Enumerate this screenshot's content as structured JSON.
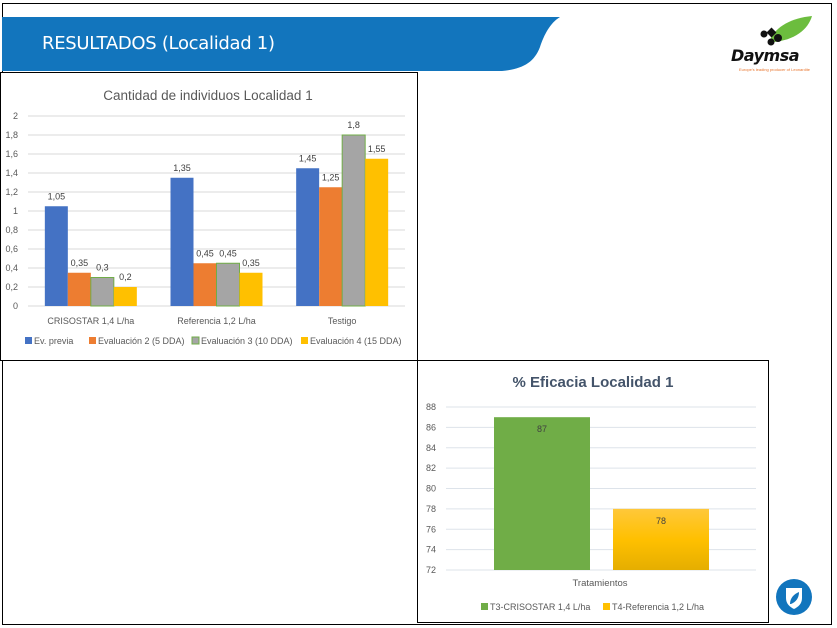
{
  "header": {
    "title": "RESULTADOS (Localidad 1)",
    "banner_color": "#1275bd"
  },
  "logo": {
    "brand": "Daymsa",
    "tagline": "Europe's leading producer of Leonardite",
    "leaf_color": "#6cbd3e"
  },
  "chart_data": [
    {
      "type": "bar",
      "title": "Cantidad de individuos Localidad 1",
      "categories": [
        "CRISOSTAR 1,4 L/ha",
        "Referencia 1,2 L/ha",
        "Testigo"
      ],
      "series": [
        {
          "name": "Ev. previa",
          "color": "#4472c4",
          "values": [
            1.05,
            1.35,
            1.45
          ],
          "labels": [
            "1,05",
            "1,35",
            "1,45"
          ]
        },
        {
          "name": "Evaluación 2 (5 DDA)",
          "color": "#ed7d31",
          "values": [
            0.35,
            0.45,
            1.25
          ],
          "labels": [
            "0,35",
            "0,45",
            "1,25"
          ]
        },
        {
          "name": "Evaluación 3 (10 DDA)",
          "color": "#a5a5a5",
          "outline": "#70ad47",
          "values": [
            0.3,
            0.45,
            1.8
          ],
          "labels": [
            "0,3",
            "0,45",
            "1,8"
          ]
        },
        {
          "name": "Evaluación 4 (15 DDA)",
          "color": "#ffc000",
          "values": [
            0.2,
            0.35,
            1.55
          ],
          "labels": [
            "0,2",
            "0,35",
            "1,55"
          ]
        }
      ],
      "ylim": [
        0,
        2
      ],
      "yticks": [
        0,
        0.2,
        0.4,
        0.6,
        0.8,
        1,
        1.2,
        1.4,
        1.6,
        1.8,
        2
      ],
      "ytick_labels": [
        "0",
        "0,2",
        "0,4",
        "0,6",
        "0,8",
        "1",
        "1,2",
        "1,4",
        "1,6",
        "1,8",
        "2"
      ],
      "xlabel": "",
      "ylabel": "",
      "grid": true,
      "legend": "bottom"
    },
    {
      "type": "bar",
      "title": "% Eficacia Localidad 1",
      "categories": [
        "Tratamientos"
      ],
      "xlabel": "Tratamientos",
      "series": [
        {
          "name": "T3-CRISOSTAR 1,4 L/ha",
          "color": "#70ad47",
          "values": [
            87
          ],
          "labels": [
            "87"
          ]
        },
        {
          "name": "T4-Referencia 1,2 L/ha",
          "color": "#ffc000",
          "values": [
            78
          ],
          "labels": [
            "78"
          ]
        }
      ],
      "ylim": [
        72,
        88
      ],
      "yticks": [
        72,
        74,
        76,
        78,
        80,
        82,
        84,
        86,
        88
      ],
      "ytick_labels": [
        "72",
        "74",
        "76",
        "78",
        "80",
        "82",
        "84",
        "86",
        "88"
      ],
      "ylabel": "",
      "grid": true,
      "legend": "bottom"
    }
  ],
  "footer_icon": {
    "name": "shield-leaf",
    "color": "#1275bd"
  }
}
